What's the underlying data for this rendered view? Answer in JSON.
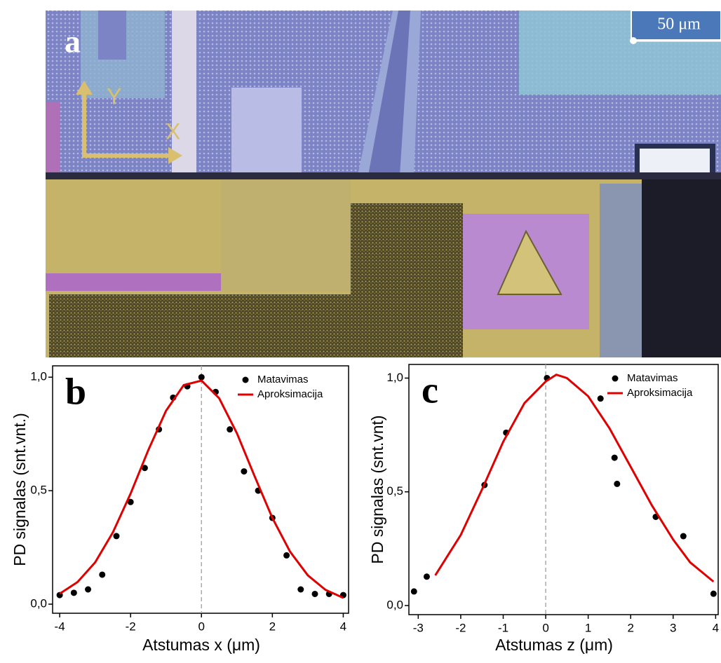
{
  "image": {
    "panel_label": "a",
    "scale_bar": "50 μm",
    "y_axis": "Y",
    "x_axis": "X"
  },
  "chart_data": [
    {
      "type": "scatter",
      "panel_label": "b",
      "xlabel": "Atstumas x (μm)",
      "ylabel": "PD signalas (snt.vnt.)",
      "xlim": [
        -4.2,
        4.15
      ],
      "ylim": [
        -0.04,
        1.05
      ],
      "xticks": [
        -4,
        -2,
        0,
        2,
        4
      ],
      "yticks": [
        {
          "value": 0,
          "label": "0,0"
        },
        {
          "value": 0.5,
          "label": "0,5"
        },
        {
          "value": 1,
          "label": "1,0"
        }
      ],
      "reference_line_x": 0,
      "legend": "upper right",
      "series": [
        {
          "name": "Matavimas",
          "type": "scatter",
          "color": "#000000",
          "x": [
            -4,
            -3.6,
            -3.2,
            -2.8,
            -2.4,
            -2,
            -1.6,
            -1.2,
            -0.8,
            -0.4,
            0,
            0.4,
            0.8,
            1.2,
            1.6,
            2,
            2.4,
            2.8,
            3.2,
            3.6,
            4
          ],
          "values": [
            0.04,
            0.05,
            0.065,
            0.13,
            0.3,
            0.45,
            0.6,
            0.77,
            0.91,
            0.96,
            1.0,
            0.935,
            0.77,
            0.585,
            0.5,
            0.38,
            0.215,
            0.065,
            0.045,
            0.045,
            0.04
          ]
        },
        {
          "name": "Aproksimacija",
          "type": "line",
          "color": "#e00000",
          "x": [
            -4,
            -3.5,
            -3,
            -2.5,
            -2,
            -1.5,
            -1,
            -0.5,
            0,
            0.5,
            1,
            1.5,
            2,
            2.5,
            3,
            3.5,
            4
          ],
          "values": [
            0.046,
            0.097,
            0.184,
            0.316,
            0.487,
            0.679,
            0.852,
            0.965,
            0.985,
            0.907,
            0.753,
            0.563,
            0.38,
            0.231,
            0.127,
            0.063,
            0.028
          ]
        }
      ]
    },
    {
      "type": "scatter",
      "panel_label": "c",
      "xlabel": "Atstumas z (μm)",
      "ylabel": "PD signalas (snt.vnt)",
      "xlim": [
        -3.22,
        4.06
      ],
      "ylim": [
        -0.04,
        1.06
      ],
      "xticks": [
        -3,
        -2,
        -1,
        0,
        1,
        2,
        3,
        4
      ],
      "yticks": [
        {
          "value": 0,
          "label": "0,0"
        },
        {
          "value": 0.5,
          "label": "0,5"
        },
        {
          "value": 1,
          "label": "1,0"
        }
      ],
      "reference_line_x": 0,
      "legend": "upper right",
      "series": [
        {
          "name": "Matavimas",
          "type": "scatter",
          "color": "#000000",
          "x": [
            -3.1,
            -2.8,
            -1.44,
            -0.93,
            0.03,
            1.29,
            1.62,
            1.68,
            2.59,
            3.24,
            3.95
          ],
          "values": [
            0.062,
            0.127,
            0.53,
            0.76,
            1.0,
            0.91,
            0.65,
            0.535,
            0.39,
            0.305,
            0.052
          ]
        },
        {
          "name": "Aproksimacija",
          "type": "line",
          "color": "#e00000",
          "x": [
            -2.6,
            -2,
            -1.5,
            -1,
            -0.5,
            0,
            0.25,
            0.5,
            1,
            1.5,
            2,
            2.5,
            3,
            3.4,
            3.95
          ],
          "values": [
            0.133,
            0.31,
            0.51,
            0.72,
            0.89,
            0.985,
            1.015,
            1.0,
            0.92,
            0.78,
            0.61,
            0.44,
            0.29,
            0.19,
            0.105
          ]
        }
      ]
    }
  ]
}
